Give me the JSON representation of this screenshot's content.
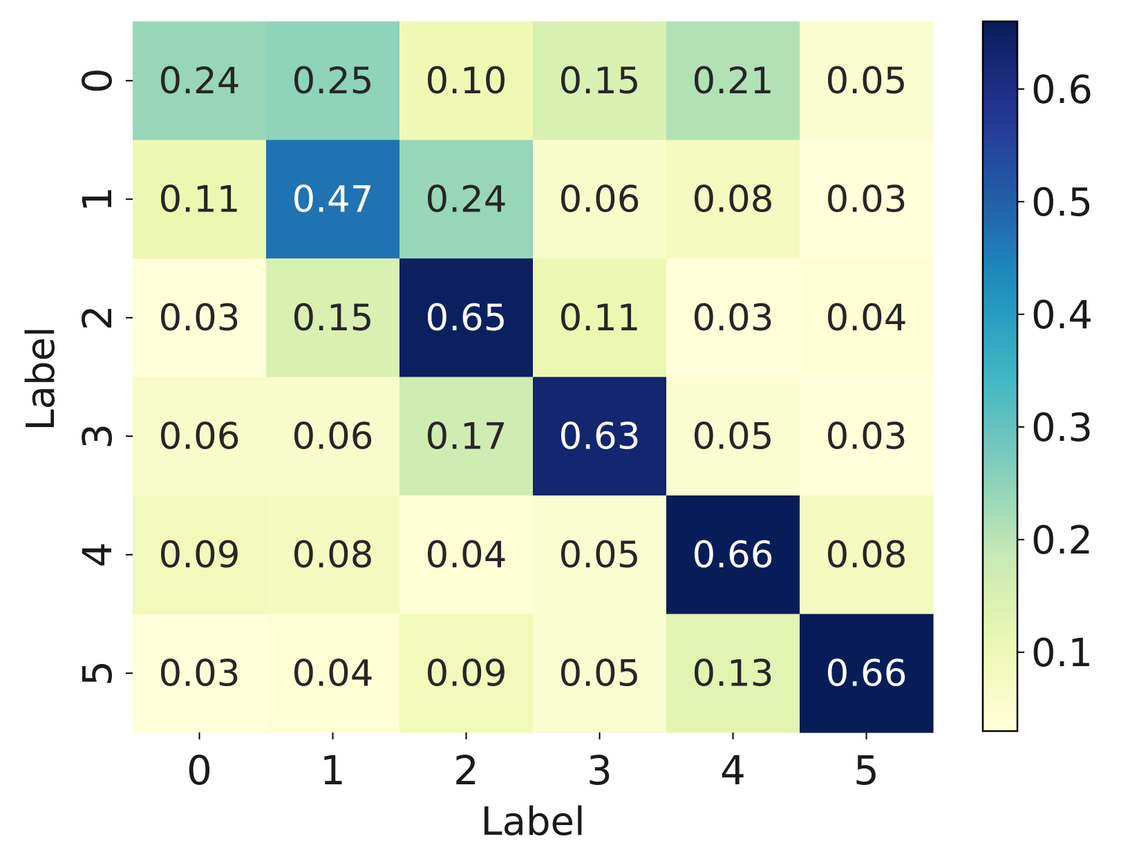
{
  "chart_data": {
    "type": "heatmap",
    "title": "",
    "xlabel": "Label",
    "ylabel": "Label",
    "x_categories": [
      "0",
      "1",
      "2",
      "3",
      "4",
      "5"
    ],
    "y_categories": [
      "0",
      "1",
      "2",
      "3",
      "4",
      "5"
    ],
    "values": [
      [
        0.24,
        0.25,
        0.1,
        0.15,
        0.21,
        0.05
      ],
      [
        0.11,
        0.47,
        0.24,
        0.06,
        0.08,
        0.03
      ],
      [
        0.03,
        0.15,
        0.65,
        0.11,
        0.03,
        0.04
      ],
      [
        0.06,
        0.06,
        0.17,
        0.63,
        0.05,
        0.03
      ],
      [
        0.09,
        0.08,
        0.04,
        0.05,
        0.66,
        0.08
      ],
      [
        0.03,
        0.04,
        0.09,
        0.05,
        0.13,
        0.66
      ]
    ],
    "annotation_format": "0.00",
    "colormap": "YlGnBu",
    "colorbar": {
      "range": [
        0.03,
        0.66
      ],
      "ticks": [
        0.1,
        0.2,
        0.3,
        0.4,
        0.5,
        0.6
      ],
      "tick_labels": [
        "0.1",
        "0.2",
        "0.3",
        "0.4",
        "0.5",
        "0.6"
      ]
    },
    "grid": false,
    "legend": "none"
  }
}
